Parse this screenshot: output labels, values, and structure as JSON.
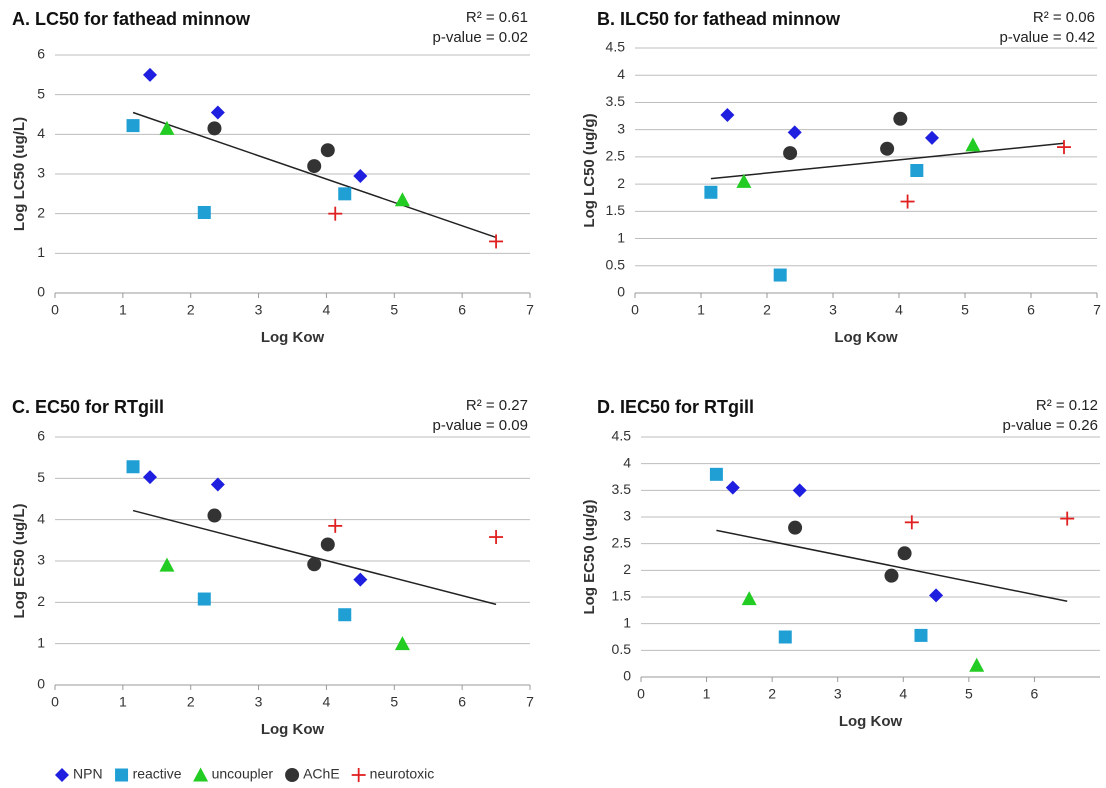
{
  "legend": [
    {
      "name": "NPN",
      "color": "#1f1fe0",
      "marker": "diamond"
    },
    {
      "name": "reactive",
      "color": "#1f9fd4",
      "marker": "square"
    },
    {
      "name": "uncoupler",
      "color": "#22cc22",
      "marker": "triangle"
    },
    {
      "name": "AChE",
      "color": "#333333",
      "marker": "circle"
    },
    {
      "name": "neurotoxic",
      "color": "#e02020",
      "marker": "plus"
    }
  ],
  "chart_data": [
    {
      "type": "scatter",
      "title": "A. LC50 for fathead minnow",
      "xlabel": "Log Kow",
      "ylabel": "Log LC50 (ug/L)",
      "annotations": [
        "R² = 0.61",
        "p-value = 0.02"
      ],
      "xlim": [
        0,
        7
      ],
      "xticks": [
        0,
        1,
        2,
        3,
        4,
        5,
        6,
        7
      ],
      "ylim": [
        0,
        6
      ],
      "yticks": [
        0,
        1,
        2,
        3,
        4,
        5,
        6
      ],
      "grid": true,
      "series": [
        {
          "x": [
            1.4,
            2.4,
            4.5
          ],
          "values": [
            5.5,
            4.55,
            2.95
          ]
        },
        {
          "x": [
            1.15,
            2.2,
            4.27
          ],
          "values": [
            4.22,
            2.03,
            2.5
          ]
        },
        {
          "x": [
            1.65,
            5.12
          ],
          "values": [
            4.15,
            2.35
          ]
        },
        {
          "x": [
            2.35,
            3.82,
            4.02
          ],
          "values": [
            4.15,
            3.2,
            3.6
          ]
        },
        {
          "x": [
            4.13,
            6.5
          ],
          "values": [
            2.0,
            1.3
          ]
        }
      ],
      "trendline": {
        "x": [
          1.15,
          6.5
        ],
        "values": [
          4.55,
          1.4
        ]
      }
    },
    {
      "type": "scatter",
      "title": "B. ILC50 for fathead minnow",
      "xlabel": "Log Kow",
      "ylabel": "Log LC50 (ug/g)",
      "annotations": [
        "R² = 0.06",
        "p-value = 0.42"
      ],
      "xlim": [
        0,
        7
      ],
      "xticks": [
        0,
        1,
        2,
        3,
        4,
        5,
        6,
        7
      ],
      "ylim": [
        0,
        4.5
      ],
      "yticks": [
        0,
        0.5,
        1,
        1.5,
        2,
        2.5,
        3,
        3.5,
        4,
        4.5
      ],
      "grid": true,
      "series": [
        {
          "x": [
            1.4,
            2.42,
            4.5
          ],
          "values": [
            3.27,
            2.95,
            2.85
          ]
        },
        {
          "x": [
            1.15,
            2.2,
            4.27
          ],
          "values": [
            1.85,
            0.33,
            2.25
          ]
        },
        {
          "x": [
            1.65,
            5.12
          ],
          "values": [
            2.05,
            2.72
          ]
        },
        {
          "x": [
            2.35,
            3.82,
            4.02
          ],
          "values": [
            2.57,
            2.65,
            3.2
          ]
        },
        {
          "x": [
            4.13,
            6.5
          ],
          "values": [
            1.68,
            2.68
          ]
        }
      ],
      "trendline": {
        "x": [
          1.15,
          6.5
        ],
        "values": [
          2.1,
          2.75
        ]
      }
    },
    {
      "type": "scatter",
      "title": "C. EC50 for RTgill",
      "xlabel": "Log Kow",
      "ylabel": "Log EC50 (ug/L)",
      "annotations": [
        "R² = 0.27",
        "p-value = 0.09"
      ],
      "xlim": [
        0,
        7
      ],
      "xticks": [
        0,
        1,
        2,
        3,
        4,
        5,
        6,
        7
      ],
      "ylim": [
        0,
        6
      ],
      "yticks": [
        0,
        1,
        2,
        3,
        4,
        5,
        6
      ],
      "grid": true,
      "series": [
        {
          "x": [
            1.4,
            2.4,
            4.5
          ],
          "values": [
            5.03,
            4.85,
            2.55
          ]
        },
        {
          "x": [
            1.15,
            2.2,
            4.27
          ],
          "values": [
            5.28,
            2.08,
            1.7
          ]
        },
        {
          "x": [
            1.65,
            5.12
          ],
          "values": [
            2.9,
            1.0
          ]
        },
        {
          "x": [
            2.35,
            3.82,
            4.02
          ],
          "values": [
            4.1,
            2.92,
            3.4
          ]
        },
        {
          "x": [
            4.13,
            6.5
          ],
          "values": [
            3.85,
            3.58
          ]
        }
      ],
      "trendline": {
        "x": [
          1.15,
          6.5
        ],
        "values": [
          4.22,
          1.95
        ]
      }
    },
    {
      "type": "scatter",
      "title": "D. IEC50 for RTgill",
      "xlabel": "Log Kow",
      "ylabel": "Log EC50 (ug/g)",
      "annotations": [
        "R² = 0.12",
        "p-value = 0.26"
      ],
      "xlim": [
        0,
        7
      ],
      "xticks": [
        0,
        1,
        2,
        3,
        4,
        5,
        6
      ],
      "ylim": [
        0,
        4.5
      ],
      "yticks": [
        0,
        0.5,
        1,
        1.5,
        2,
        2.5,
        3,
        3.5,
        4,
        4.5
      ],
      "grid": true,
      "series": [
        {
          "x": [
            1.4,
            2.42,
            4.5
          ],
          "values": [
            3.55,
            3.5,
            1.53
          ]
        },
        {
          "x": [
            1.15,
            2.2,
            4.27
          ],
          "values": [
            3.8,
            0.75,
            0.78
          ]
        },
        {
          "x": [
            1.65,
            5.12
          ],
          "values": [
            1.47,
            0.22
          ]
        },
        {
          "x": [
            2.35,
            3.82,
            4.02
          ],
          "values": [
            2.8,
            1.9,
            2.32
          ]
        },
        {
          "x": [
            4.13,
            6.5
          ],
          "values": [
            2.9,
            2.97
          ]
        }
      ],
      "trendline": {
        "x": [
          1.15,
          6.5
        ],
        "values": [
          2.75,
          1.42
        ]
      }
    }
  ]
}
